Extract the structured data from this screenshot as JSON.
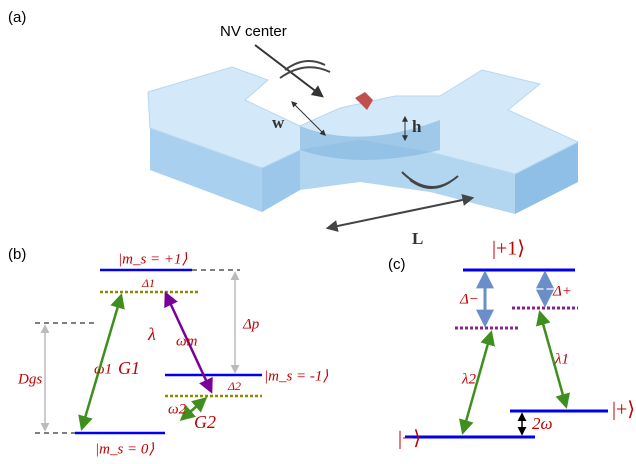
{
  "panel_a": {
    "label": "(a)",
    "nv_label": "NV center",
    "width_label": "w",
    "height_label": "h",
    "length_label": "L"
  },
  "panel_b": {
    "label": "(b)",
    "level_plus1": "|m_s = +1⟩",
    "level_minus1": "|m_s = -1⟩",
    "level_zero": "|m_s = 0⟩",
    "delta1": "Δ1",
    "delta2": "Δ2",
    "delta_p": "Δp",
    "d_gs": "Dgs",
    "omega1": "ω1",
    "g1": "G1",
    "lambda": "λ",
    "omega_m": "ωm",
    "omega2": "ω2",
    "g2": "G2"
  },
  "panel_c": {
    "label": "(c)",
    "level_plus1": "|+1⟩",
    "level_minus": "|−⟩",
    "level_plus": "|+⟩",
    "delta_minus": "Δ−",
    "delta_plus": "Δ+",
    "lambda2": "λ2",
    "lambda1": "λ1",
    "two_omega": "2ω"
  }
}
